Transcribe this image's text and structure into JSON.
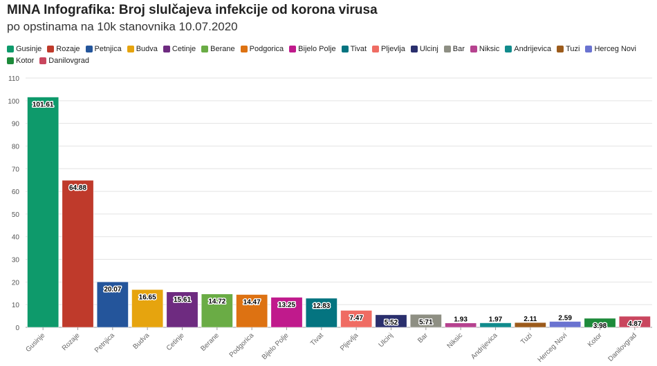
{
  "chart_data": {
    "type": "bar",
    "title": "MINA Infografika: Broj slulčajeva infekcije od korona virusa",
    "subtitle": "po opstinama na 10k stanovnika 10.07.2020",
    "xlabel": "",
    "ylabel": "",
    "ylim": [
      0,
      110
    ],
    "yticks": [
      0,
      10,
      20,
      30,
      40,
      50,
      60,
      70,
      80,
      90,
      100,
      110
    ],
    "grid": true,
    "legend_position": "top",
    "categories": [
      "Gusinje",
      "Rozaje",
      "Petnjica",
      "Budva",
      "Cetinje",
      "Berane",
      "Podgorica",
      "Bijelo Polje",
      "Tivat",
      "Pljevlja",
      "Ulcinj",
      "Bar",
      "Niksic",
      "Andrijevica",
      "Tuzi",
      "Herceg Novi",
      "Kotor",
      "Danilovgrad"
    ],
    "values": [
      101.61,
      64.88,
      20.07,
      16.65,
      15.61,
      14.72,
      14.47,
      13.25,
      12.83,
      7.47,
      5.52,
      5.71,
      1.93,
      1.97,
      2.11,
      2.59,
      3.98,
      4.87
    ],
    "labels": [
      "101.61",
      "64.88",
      "20.07",
      "16.65",
      "15.61",
      "14.72",
      "14.47",
      "13.25",
      "12.83",
      "7.47",
      "5.52",
      "5.71",
      "1.93",
      "1.97",
      "2.11",
      "2.59",
      "3.98",
      "4.87"
    ],
    "colors": [
      "#0e9a6b",
      "#bf3a2b",
      "#24559b",
      "#e6a40e",
      "#6e2b80",
      "#6aac45",
      "#dd7212",
      "#c01a8c",
      "#047480",
      "#ef6c63",
      "#2a2f6d",
      "#8e8f83",
      "#b6428f",
      "#118b8c",
      "#9c5b1b",
      "#6a73d0",
      "#1d8a3a",
      "#c9465e"
    ]
  }
}
